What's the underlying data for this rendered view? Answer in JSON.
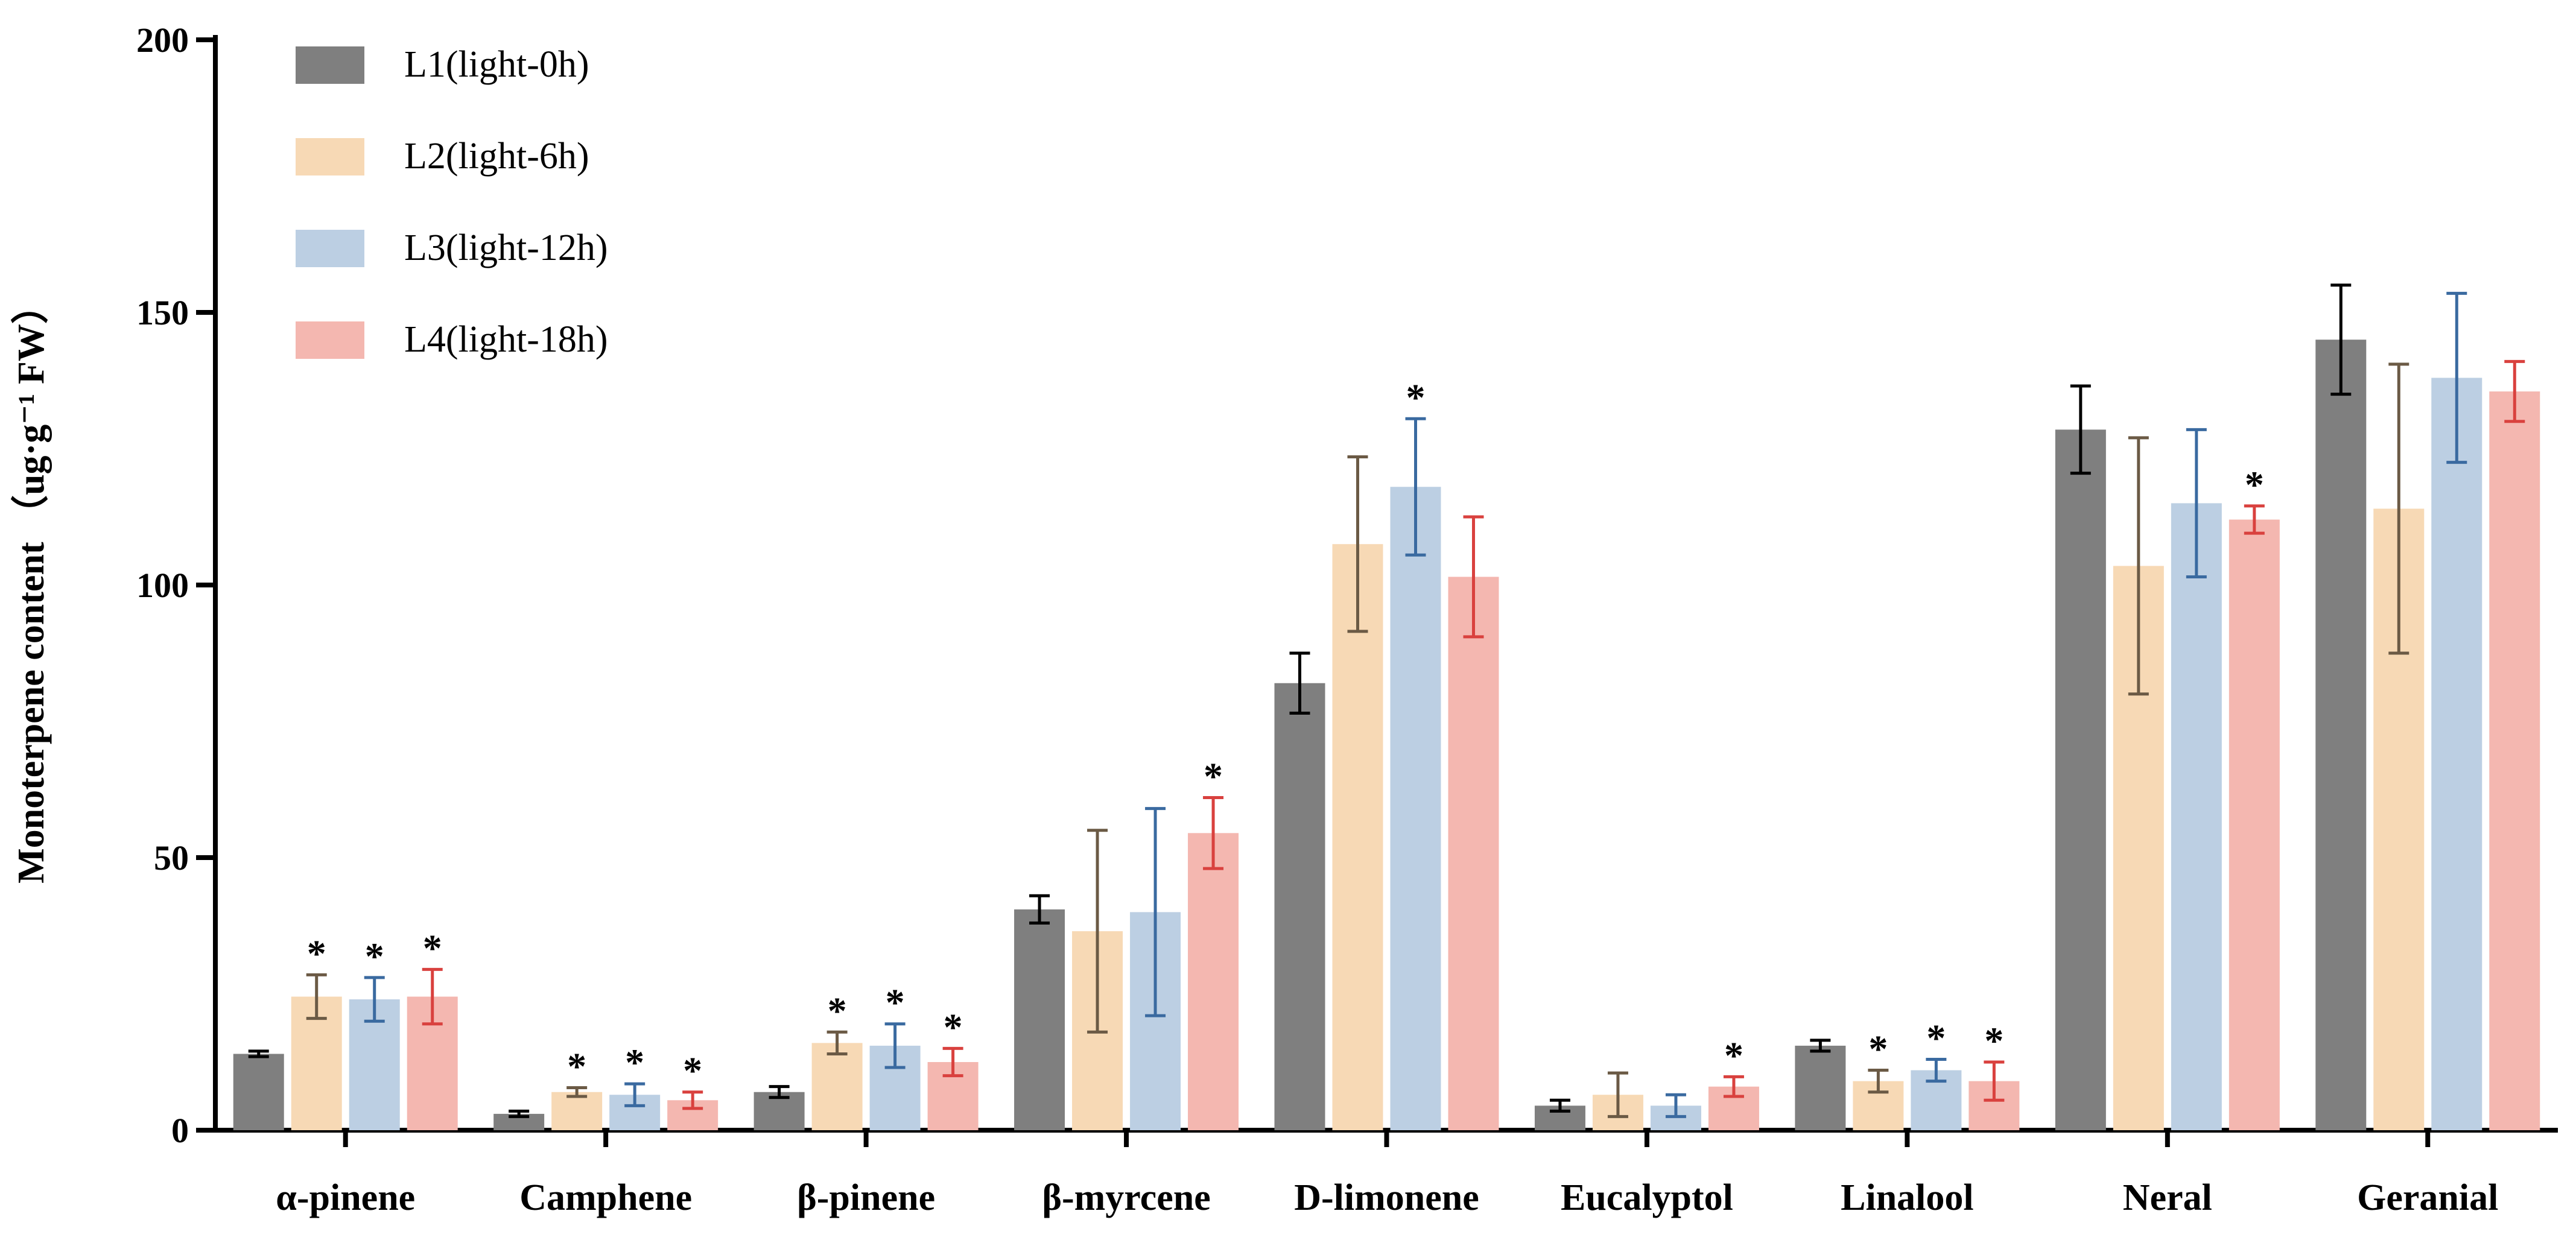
{
  "chart_data": {
    "type": "bar",
    "title": "",
    "xlabel": "",
    "ylabel": "Monoterpene content （ug·g⁻¹ FW）",
    "ylim": [
      0,
      200
    ],
    "yticks": [
      0,
      50,
      100,
      150,
      200
    ],
    "grid": false,
    "legend_position": "top-left",
    "categories": [
      "α-pinene",
      "Camphene",
      "β-pinene",
      "β-myrcene",
      "D-limonene",
      "Eucalyptol",
      "Linalool",
      "Neral",
      "Geranial"
    ],
    "series": [
      {
        "name": "L1(light-0h)",
        "fill": "#7f7f7f",
        "error_color": "#000000",
        "values": [
          14,
          3,
          7,
          40.5,
          82,
          4.5,
          15.5,
          128.5,
          145
        ],
        "errors": [
          0.5,
          0.5,
          1,
          2.5,
          5.5,
          1,
          1,
          8,
          10
        ],
        "significant": [
          false,
          false,
          false,
          false,
          false,
          false,
          false,
          false,
          false
        ]
      },
      {
        "name": "L2(light-6h)",
        "fill": "#f7d9b5",
        "error_color": "#6b5a45",
        "values": [
          24.5,
          7,
          16,
          36.5,
          107.5,
          6.5,
          9,
          103.5,
          114
        ],
        "errors": [
          4,
          0.8,
          2,
          18.5,
          16,
          4,
          2,
          23.5,
          26.5
        ],
        "significant": [
          true,
          true,
          true,
          false,
          false,
          false,
          true,
          false,
          false
        ]
      },
      {
        "name": "L3(light-12h)",
        "fill": "#bccfe3",
        "error_color": "#3a6aa0",
        "values": [
          24,
          6.5,
          15.5,
          40,
          118,
          4.5,
          11,
          115,
          138
        ],
        "errors": [
          4,
          2,
          4,
          19,
          12.5,
          2,
          2,
          13.5,
          15.5
        ],
        "significant": [
          true,
          true,
          true,
          false,
          true,
          false,
          true,
          false,
          false
        ]
      },
      {
        "name": "L4(light-18h)",
        "fill": "#f4b7b0",
        "error_color": "#d9413e",
        "values": [
          24.5,
          5.5,
          12.5,
          54.5,
          101.5,
          8,
          9,
          112,
          135.5
        ],
        "errors": [
          5,
          1.5,
          2.5,
          6.5,
          11,
          1.8,
          3.5,
          2.5,
          5.5
        ],
        "significant": [
          true,
          true,
          true,
          true,
          false,
          true,
          true,
          true,
          false
        ]
      }
    ],
    "significance_marker": "*"
  }
}
